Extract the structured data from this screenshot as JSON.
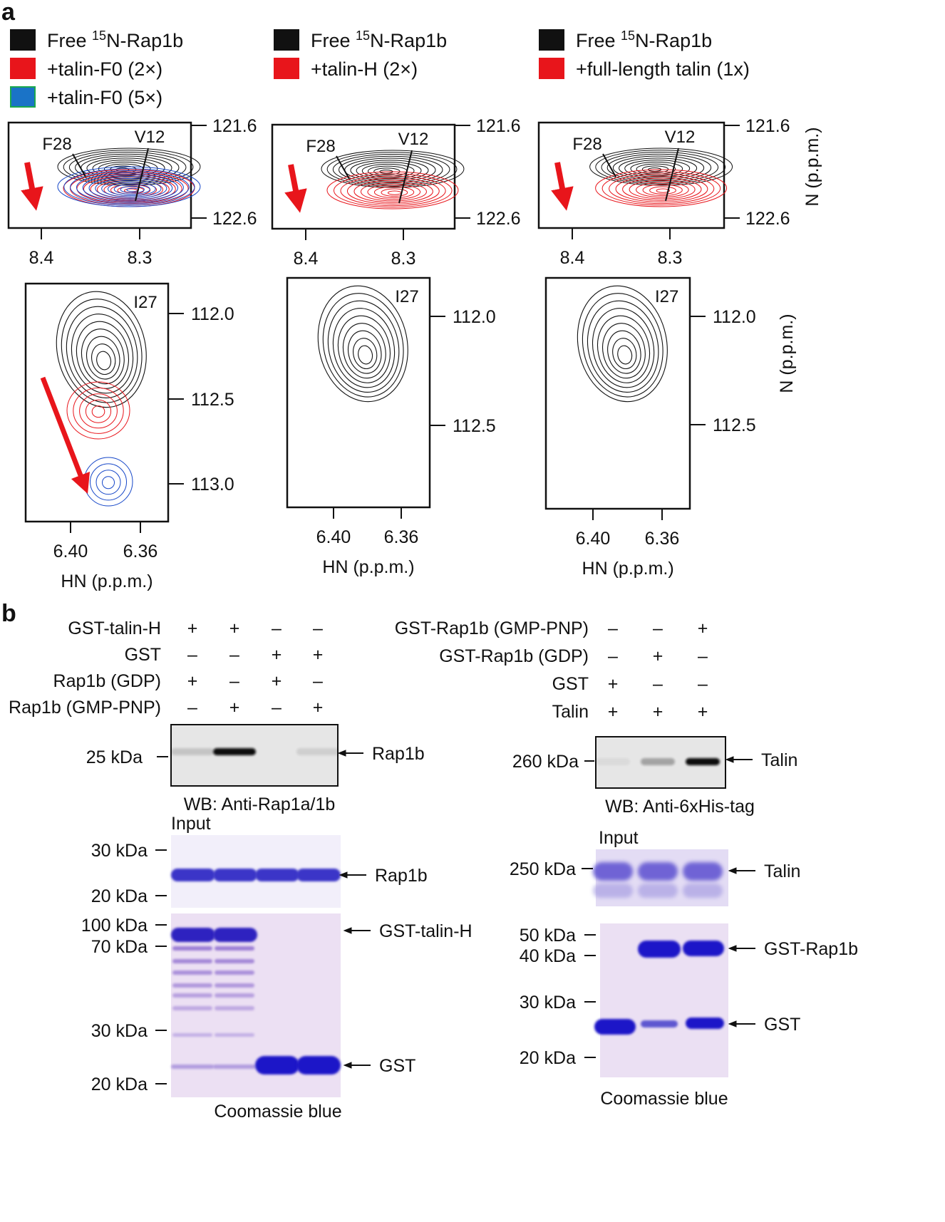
{
  "panel_a": {
    "label": "a",
    "colors": {
      "black": "#111111",
      "red": "#e8151b",
      "blue": "#1546c8",
      "swatch_blue": "#1a73c7",
      "swatch_green": "#1aa84e"
    },
    "columns": [
      {
        "legend": [
          {
            "pre": "Free ",
            "sup": "15",
            "post": "N-Rap1b",
            "color": "black"
          },
          {
            "pre": "+talin-F0 (2×)",
            "sup": "",
            "post": "",
            "color": "red"
          },
          {
            "pre": "+talin-F0 (5×)",
            "sup": "",
            "post": "",
            "color": "blue"
          }
        ],
        "top": {
          "peak1": "F28",
          "peak2": "V12",
          "y_ticks": [
            "121.6",
            "122.6"
          ],
          "x_ticks": [
            "8.4",
            "8.3"
          ]
        },
        "bottom": {
          "peak": "I27",
          "y_ticks": [
            "112.0",
            "112.5",
            "113.0"
          ],
          "x_ticks": [
            "6.40",
            "6.36"
          ],
          "xlabel": "HN (p.p.m.)"
        }
      },
      {
        "legend": [
          {
            "pre": "Free ",
            "sup": "15",
            "post": "N-Rap1b",
            "color": "black"
          },
          {
            "pre": "+talin-H (2×)",
            "sup": "",
            "post": "",
            "color": "red"
          }
        ],
        "top": {
          "peak1": "F28",
          "peak2": "V12",
          "y_ticks": [
            "121.6",
            "122.6"
          ],
          "x_ticks": [
            "8.4",
            "8.3"
          ]
        },
        "bottom": {
          "peak": "I27",
          "y_ticks": [
            "112.0",
            "112.5"
          ],
          "x_ticks": [
            "6.40",
            "6.36"
          ],
          "xlabel": "HN (p.p.m.)"
        }
      },
      {
        "legend": [
          {
            "pre": "Free ",
            "sup": "15",
            "post": "N-Rap1b",
            "color": "black"
          },
          {
            "pre": "+full-length talin (1x)",
            "sup": "",
            "post": "",
            "color": "red"
          }
        ],
        "top": {
          "peak1": "F28",
          "peak2": "V12",
          "y_ticks": [
            "121.6",
            "122.6"
          ],
          "x_ticks": [
            "8.4",
            "8.3"
          ],
          "ylabel": "N (p.p.m.)"
        },
        "bottom": {
          "peak": "I27",
          "y_ticks": [
            "112.0",
            "112.5"
          ],
          "x_ticks": [
            "6.40",
            "6.36"
          ],
          "xlabel": "HN (p.p.m.)",
          "ylabel": "N (p.p.m.)"
        }
      }
    ]
  },
  "panel_b": {
    "label": "b",
    "left": {
      "rows": [
        {
          "label": "GST-talin-H",
          "signs": [
            "+",
            "+",
            "–",
            "–"
          ]
        },
        {
          "label": "GST",
          "signs": [
            "–",
            "–",
            "+",
            "+"
          ]
        },
        {
          "label": "Rap1b (GDP)",
          "signs": [
            "+",
            "–",
            "+",
            "–"
          ]
        },
        {
          "label": "Rap1b (GMP-PNP)",
          "signs": [
            "–",
            "+",
            "–",
            "+"
          ]
        }
      ],
      "wb": {
        "marker": "25 kDa",
        "band": "Rap1b",
        "caption": "WB: Anti-Rap1a/1b",
        "intensity": [
          0.15,
          1.0,
          0.0,
          0.1
        ]
      },
      "input": {
        "title": "Input",
        "markers": [
          "30 kDa",
          "20 kDa"
        ],
        "band": "Rap1b"
      },
      "gel": {
        "markers": [
          "100 kDa",
          "70 kDa",
          "30 kDa",
          "20 kDa"
        ],
        "band1": "GST-talin-H",
        "band2": "GST",
        "caption": "Coomassie blue"
      }
    },
    "right": {
      "rows": [
        {
          "label": "GST-Rap1b (GMP-PNP)",
          "signs": [
            "–",
            "–",
            "+"
          ]
        },
        {
          "label": "GST-Rap1b (GDP)",
          "signs": [
            "–",
            "+",
            "–"
          ]
        },
        {
          "label": "GST",
          "signs": [
            "+",
            "–",
            "–"
          ]
        },
        {
          "label": "Talin",
          "signs": [
            "+",
            "+",
            "+"
          ]
        }
      ],
      "wb": {
        "marker": "260 kDa",
        "band": "Talin",
        "caption": "WB: Anti-6xHis-tag",
        "intensity": [
          0.05,
          0.3,
          1.0
        ]
      },
      "input": {
        "title": "Input",
        "markers": [
          "250 kDa"
        ],
        "band": "Talin"
      },
      "gel": {
        "markers": [
          "50 kDa",
          "40 kDa",
          "30 kDa",
          "20 kDa"
        ],
        "band1": "GST-Rap1b",
        "band2": "GST",
        "caption": "Coomassie blue"
      }
    }
  }
}
